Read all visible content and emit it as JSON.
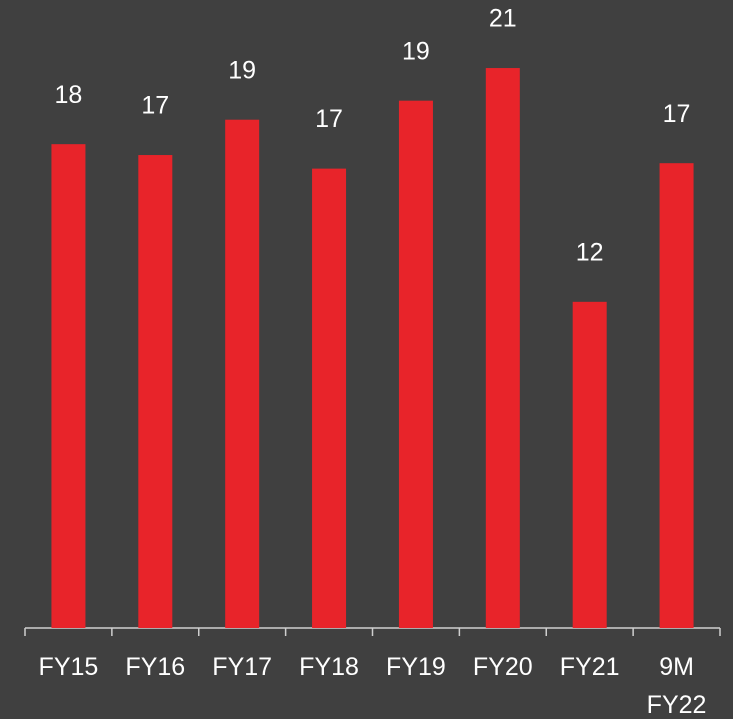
{
  "chart_data": {
    "type": "bar",
    "categories": [
      "FY15",
      "FY16",
      "FY17",
      "FY18",
      "FY19",
      "FY20",
      "FY21",
      "9M FY22"
    ],
    "values": [
      17.8,
      17.4,
      18.7,
      16.9,
      19.4,
      20.6,
      12.0,
      17.1
    ],
    "value_labels": [
      "18",
      "17",
      "19",
      "17",
      "19",
      "21",
      "12",
      "17"
    ],
    "color": "#e8242a",
    "ylim": [
      0,
      22
    ]
  }
}
